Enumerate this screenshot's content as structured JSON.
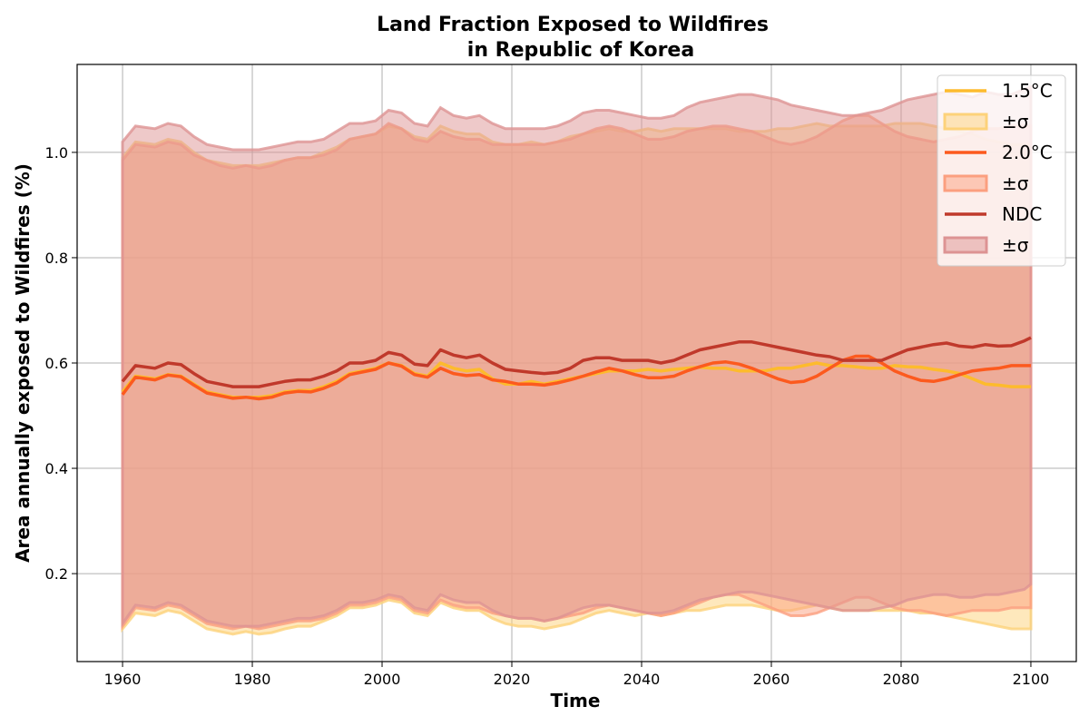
{
  "chart_data": {
    "type": "area",
    "title_line1": "Land Fraction Exposed to Wildfires",
    "title_line2": "in Republic of Korea",
    "xlabel": "Time",
    "ylabel": "Area annually exposed to Wildfires (%)",
    "xlim": [
      1953,
      2107
    ],
    "ylim": [
      0.033,
      1.167
    ],
    "xticks": [
      1960,
      1980,
      2000,
      2020,
      2040,
      2060,
      2080,
      2100
    ],
    "yticks": [
      0.2,
      0.4,
      0.6,
      0.8,
      1.0
    ],
    "ytick_labels": [
      "0.2",
      "0.4",
      "0.6",
      "0.8",
      "1.0"
    ],
    "grid": true,
    "legend_position": "top-right",
    "x": [
      1960,
      1962,
      1965,
      1967,
      1969,
      1971,
      1973,
      1975,
      1977,
      1979,
      1981,
      1983,
      1985,
      1987,
      1989,
      1991,
      1993,
      1995,
      1997,
      1999,
      2001,
      2003,
      2005,
      2007,
      2009,
      2011,
      2013,
      2015,
      2017,
      2019,
      2021,
      2023,
      2025,
      2027,
      2029,
      2031,
      2033,
      2035,
      2037,
      2039,
      2041,
      2043,
      2045,
      2047,
      2049,
      2051,
      2053,
      2055,
      2057,
      2059,
      2061,
      2063,
      2065,
      2067,
      2069,
      2071,
      2073,
      2075,
      2077,
      2079,
      2081,
      2083,
      2085,
      2087,
      2089,
      2091,
      2093,
      2095,
      2097,
      2099,
      2100
    ],
    "series": [
      {
        "name": "1.5°C",
        "band_label": "±σ",
        "color": "#fdbb2d",
        "band_color": "#fdd27a",
        "mean": [
          0.545,
          0.575,
          0.57,
          0.578,
          0.575,
          0.56,
          0.545,
          0.54,
          0.535,
          0.535,
          0.535,
          0.538,
          0.545,
          0.548,
          0.548,
          0.555,
          0.565,
          0.58,
          0.585,
          0.59,
          0.6,
          0.595,
          0.58,
          0.575,
          0.6,
          0.59,
          0.585,
          0.588,
          0.57,
          0.56,
          0.56,
          0.565,
          0.56,
          0.565,
          0.57,
          0.575,
          0.58,
          0.585,
          0.585,
          0.585,
          0.588,
          0.585,
          0.588,
          0.59,
          0.592,
          0.59,
          0.59,
          0.585,
          0.585,
          0.585,
          0.59,
          0.59,
          0.595,
          0.6,
          0.595,
          0.595,
          0.593,
          0.59,
          0.59,
          0.595,
          0.593,
          0.592,
          0.588,
          0.585,
          0.58,
          0.57,
          0.56,
          0.558,
          0.555,
          0.555,
          0.555
        ],
        "upper": [
          0.99,
          1.02,
          1.015,
          1.025,
          1.02,
          1.0,
          0.985,
          0.98,
          0.975,
          0.975,
          0.975,
          0.98,
          0.985,
          0.99,
          0.99,
          1.0,
          1.01,
          1.025,
          1.03,
          1.035,
          1.05,
          1.045,
          1.03,
          1.025,
          1.05,
          1.04,
          1.035,
          1.035,
          1.02,
          1.015,
          1.015,
          1.02,
          1.015,
          1.02,
          1.03,
          1.035,
          1.04,
          1.045,
          1.04,
          1.04,
          1.045,
          1.04,
          1.045,
          1.045,
          1.045,
          1.045,
          1.045,
          1.04,
          1.04,
          1.04,
          1.045,
          1.045,
          1.05,
          1.055,
          1.05,
          1.05,
          1.05,
          1.05,
          1.05,
          1.055,
          1.055,
          1.055,
          1.05,
          1.045,
          1.04,
          1.035,
          1.025,
          1.02,
          1.015,
          1.015,
          1.015
        ],
        "lower": [
          0.095,
          0.125,
          0.12,
          0.13,
          0.125,
          0.11,
          0.095,
          0.09,
          0.085,
          0.09,
          0.085,
          0.088,
          0.095,
          0.1,
          0.1,
          0.11,
          0.12,
          0.135,
          0.135,
          0.14,
          0.15,
          0.145,
          0.125,
          0.12,
          0.145,
          0.135,
          0.13,
          0.13,
          0.115,
          0.105,
          0.1,
          0.1,
          0.095,
          0.1,
          0.105,
          0.115,
          0.125,
          0.13,
          0.125,
          0.12,
          0.125,
          0.12,
          0.125,
          0.13,
          0.13,
          0.135,
          0.14,
          0.14,
          0.14,
          0.135,
          0.13,
          0.13,
          0.135,
          0.14,
          0.135,
          0.13,
          0.13,
          0.13,
          0.13,
          0.13,
          0.13,
          0.125,
          0.125,
          0.12,
          0.115,
          0.11,
          0.105,
          0.1,
          0.095,
          0.095,
          0.095
        ]
      },
      {
        "name": "2.0°C",
        "band_label": "±σ",
        "color": "#fc5a1e",
        "band_color": "#fb9f7f",
        "mean": [
          0.54,
          0.573,
          0.568,
          0.577,
          0.574,
          0.558,
          0.543,
          0.538,
          0.533,
          0.535,
          0.532,
          0.535,
          0.543,
          0.546,
          0.545,
          0.552,
          0.562,
          0.578,
          0.583,
          0.588,
          0.6,
          0.594,
          0.578,
          0.573,
          0.59,
          0.58,
          0.576,
          0.578,
          0.568,
          0.565,
          0.56,
          0.56,
          0.558,
          0.562,
          0.568,
          0.575,
          0.583,
          0.59,
          0.585,
          0.578,
          0.572,
          0.572,
          0.575,
          0.585,
          0.593,
          0.6,
          0.602,
          0.598,
          0.59,
          0.58,
          0.57,
          0.563,
          0.565,
          0.575,
          0.59,
          0.605,
          0.613,
          0.613,
          0.6,
          0.585,
          0.575,
          0.567,
          0.565,
          0.57,
          0.578,
          0.585,
          0.588,
          0.59,
          0.595,
          0.595,
          0.595
        ],
        "upper": [
          0.985,
          1.015,
          1.01,
          1.02,
          1.015,
          0.995,
          0.985,
          0.975,
          0.97,
          0.975,
          0.97,
          0.975,
          0.985,
          0.99,
          0.99,
          0.995,
          1.005,
          1.025,
          1.03,
          1.035,
          1.055,
          1.045,
          1.025,
          1.02,
          1.04,
          1.03,
          1.025,
          1.025,
          1.015,
          1.015,
          1.015,
          1.015,
          1.015,
          1.02,
          1.025,
          1.035,
          1.045,
          1.05,
          1.045,
          1.035,
          1.025,
          1.025,
          1.03,
          1.04,
          1.045,
          1.05,
          1.05,
          1.045,
          1.04,
          1.03,
          1.02,
          1.015,
          1.02,
          1.03,
          1.045,
          1.06,
          1.07,
          1.07,
          1.055,
          1.04,
          1.03,
          1.025,
          1.02,
          1.025,
          1.03,
          1.04,
          1.045,
          1.045,
          1.05,
          1.05,
          1.05
        ],
        "lower": [
          0.1,
          0.135,
          0.13,
          0.14,
          0.135,
          0.12,
          0.105,
          0.1,
          0.095,
          0.1,
          0.095,
          0.1,
          0.105,
          0.11,
          0.11,
          0.115,
          0.125,
          0.14,
          0.14,
          0.145,
          0.155,
          0.15,
          0.13,
          0.125,
          0.15,
          0.14,
          0.135,
          0.135,
          0.125,
          0.12,
          0.115,
          0.115,
          0.11,
          0.115,
          0.12,
          0.125,
          0.135,
          0.14,
          0.135,
          0.13,
          0.125,
          0.12,
          0.125,
          0.135,
          0.145,
          0.155,
          0.16,
          0.16,
          0.15,
          0.14,
          0.13,
          0.12,
          0.12,
          0.125,
          0.135,
          0.145,
          0.155,
          0.155,
          0.145,
          0.135,
          0.13,
          0.13,
          0.125,
          0.12,
          0.125,
          0.13,
          0.13,
          0.13,
          0.135,
          0.135,
          0.135
        ]
      },
      {
        "name": "NDC",
        "band_label": "±σ",
        "color": "#c0392b",
        "band_color": "#dd9393",
        "mean": [
          0.565,
          0.595,
          0.59,
          0.6,
          0.597,
          0.58,
          0.565,
          0.56,
          0.555,
          0.555,
          0.555,
          0.56,
          0.565,
          0.568,
          0.568,
          0.575,
          0.585,
          0.6,
          0.6,
          0.605,
          0.62,
          0.615,
          0.598,
          0.595,
          0.625,
          0.615,
          0.61,
          0.615,
          0.6,
          0.588,
          0.585,
          0.582,
          0.58,
          0.582,
          0.59,
          0.605,
          0.61,
          0.61,
          0.605,
          0.605,
          0.605,
          0.6,
          0.605,
          0.615,
          0.625,
          0.63,
          0.635,
          0.64,
          0.64,
          0.635,
          0.63,
          0.625,
          0.62,
          0.615,
          0.612,
          0.605,
          0.605,
          0.605,
          0.605,
          0.615,
          0.625,
          0.63,
          0.635,
          0.638,
          0.632,
          0.63,
          0.635,
          0.632,
          0.633,
          0.642,
          0.648
        ],
        "upper": [
          1.02,
          1.05,
          1.045,
          1.055,
          1.05,
          1.03,
          1.015,
          1.01,
          1.005,
          1.005,
          1.005,
          1.01,
          1.015,
          1.02,
          1.02,
          1.025,
          1.04,
          1.055,
          1.055,
          1.06,
          1.08,
          1.075,
          1.055,
          1.05,
          1.085,
          1.07,
          1.065,
          1.07,
          1.055,
          1.045,
          1.045,
          1.045,
          1.045,
          1.05,
          1.06,
          1.075,
          1.08,
          1.08,
          1.075,
          1.07,
          1.065,
          1.065,
          1.07,
          1.085,
          1.095,
          1.1,
          1.105,
          1.11,
          1.11,
          1.105,
          1.1,
          1.09,
          1.085,
          1.08,
          1.075,
          1.07,
          1.07,
          1.075,
          1.08,
          1.09,
          1.1,
          1.105,
          1.11,
          1.115,
          1.11,
          1.105,
          1.115,
          1.11,
          1.11,
          1.12,
          1.125
        ],
        "lower": [
          0.105,
          0.14,
          0.135,
          0.145,
          0.14,
          0.125,
          0.11,
          0.105,
          0.1,
          0.1,
          0.1,
          0.105,
          0.11,
          0.115,
          0.115,
          0.12,
          0.13,
          0.145,
          0.145,
          0.15,
          0.16,
          0.155,
          0.135,
          0.13,
          0.16,
          0.15,
          0.145,
          0.145,
          0.13,
          0.12,
          0.115,
          0.115,
          0.11,
          0.115,
          0.125,
          0.135,
          0.14,
          0.14,
          0.135,
          0.13,
          0.125,
          0.125,
          0.13,
          0.14,
          0.15,
          0.155,
          0.16,
          0.165,
          0.165,
          0.16,
          0.155,
          0.15,
          0.145,
          0.14,
          0.135,
          0.13,
          0.13,
          0.13,
          0.135,
          0.14,
          0.15,
          0.155,
          0.16,
          0.16,
          0.155,
          0.155,
          0.16,
          0.16,
          0.165,
          0.17,
          0.18
        ]
      }
    ]
  }
}
